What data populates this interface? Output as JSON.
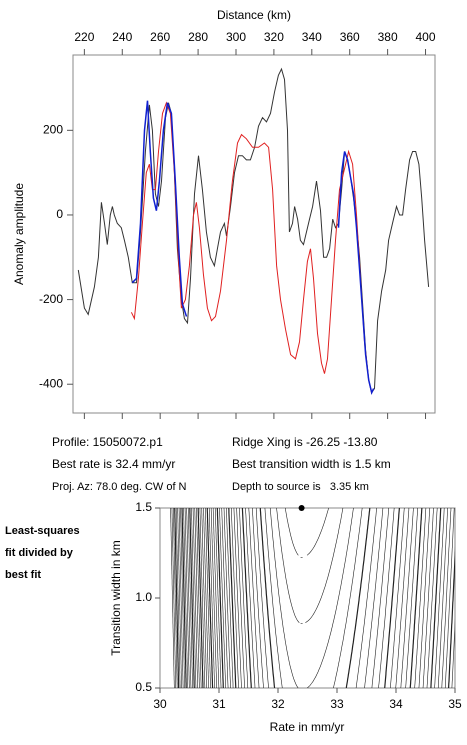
{
  "chart_data": [
    {
      "type": "line",
      "xlabel": "Distance (km)",
      "ylabel": "Anomaly amplitude",
      "xlim": [
        214,
        405
      ],
      "ylim": [
        -468,
        378
      ],
      "xticks": [
        220,
        240,
        260,
        280,
        300,
        320,
        340,
        360,
        380,
        400
      ],
      "yticks": [
        -400,
        -200,
        0,
        200
      ],
      "series": [
        {
          "color": "#333333",
          "x": [
            216.8,
            220,
            222,
            225.3,
            227.4,
            229,
            230.6,
            232.1,
            233.7,
            234.8,
            235.8,
            237.4,
            239.5,
            241.1,
            243.2,
            245.3,
            247.5,
            249.6,
            252.2,
            254.3,
            255.9,
            257.5,
            259.1,
            260.7,
            262.8,
            264.4,
            265.9,
            267.5,
            269.1,
            271.2,
            272.8,
            274.4,
            276,
            278.1,
            280.2,
            282.3,
            284.4,
            286.5,
            288.6,
            290.2,
            291.8,
            293.9,
            295,
            297.1,
            299.2,
            301.3,
            303.4,
            305.5,
            307.6,
            309.8,
            311.9,
            314,
            316.1,
            318.2,
            320.3,
            322.4,
            324,
            325.6,
            327.2,
            328.2,
            329.8,
            330.9,
            332.5,
            334,
            335.6,
            337.2,
            338.8,
            340.4,
            342.5,
            344.6,
            346.2,
            347.8,
            349.4,
            351,
            352.5,
            354.1,
            355.7,
            357.3,
            358.9,
            360.4,
            362,
            363.6,
            365.2,
            366.8,
            368.4,
            370,
            371.6,
            373.1,
            374.7,
            376.8,
            379,
            380.5,
            382.6,
            384.7,
            386.3,
            387.9,
            389.5,
            391.6,
            393.2,
            394.8,
            396.5,
            398,
            399.5,
            401.6
          ],
          "values": [
            -130,
            -220,
            -235,
            -170,
            -100,
            30,
            -20,
            -70,
            0,
            20,
            0,
            -20,
            -30,
            -60,
            -100,
            -160,
            -160,
            -40,
            150,
            260,
            200,
            50,
            20,
            80,
            230,
            265,
            240,
            100,
            -80,
            -200,
            -245,
            -255,
            -150,
            50,
            140,
            60,
            -40,
            -100,
            -120,
            -80,
            -40,
            -20,
            -50,
            20,
            100,
            140,
            140,
            130,
            130,
            160,
            210,
            230,
            220,
            240,
            290,
            330,
            345,
            320,
            200,
            -40,
            -20,
            20,
            -10,
            -60,
            -70,
            -40,
            -10,
            20,
            80,
            10,
            -100,
            -100,
            -80,
            -10,
            -30,
            -20,
            60,
            150,
            130,
            90,
            40,
            -20,
            -100,
            -210,
            -320,
            -390,
            -420,
            -410,
            -250,
            -180,
            -130,
            -60,
            -20,
            20,
            0,
            0,
            60,
            130,
            150,
            150,
            120,
            40,
            -60,
            -170
          ]
        },
        {
          "color": "#e02020",
          "x": [
            244.8,
            246.4,
            248.5,
            250.6,
            252.7,
            254.3,
            255.9,
            257.5,
            259.1,
            261.2,
            263.3,
            265.4,
            267.5,
            269.6,
            271.2,
            273.3,
            275.4,
            277.6,
            279.1,
            280.7,
            282.8,
            284.9,
            287.1,
            289.2,
            291.8,
            295,
            298.1,
            300.8,
            302.9,
            305.5,
            308.7,
            311.9,
            315,
            317.2,
            319.3,
            321.4,
            323.5,
            326.1,
            328.8,
            331.4,
            333.5,
            335.6,
            337.7,
            339.3,
            340.9,
            343,
            345.1,
            346.7,
            348.3,
            350.4,
            352.5,
            354.6,
            356.8,
            359.4,
            361.5,
            363.6,
            365.7,
            367.8,
            370,
            371.5,
            372.6
          ],
          "values": [
            -230,
            -245,
            -150,
            -20,
            100,
            120,
            60,
            60,
            150,
            240,
            265,
            240,
            100,
            -100,
            -220,
            -200,
            -120,
            0,
            30,
            -30,
            -140,
            -220,
            -250,
            -240,
            -180,
            -60,
            80,
            170,
            190,
            180,
            160,
            160,
            170,
            160,
            60,
            -120,
            -200,
            -270,
            -330,
            -340,
            -300,
            -200,
            -110,
            -80,
            -150,
            -280,
            -350,
            -375,
            -340,
            -200,
            -60,
            60,
            100,
            150,
            120,
            0,
            -150,
            -300,
            -390,
            -420,
            -410
          ]
        },
        {
          "color": "#1020d0",
          "x": [
            245.3,
            247.5,
            249.6,
            251.7,
            253.3,
            254.8,
            256.4,
            258,
            259.6,
            261.7,
            263.8,
            265.9,
            268,
            270.1,
            271.7,
            273.9,
            null,
            354.1,
            355.7,
            357.3,
            358.9,
            360.4,
            362,
            363.6,
            365.2,
            366.8,
            368.4,
            370,
            371.6,
            372.6
          ],
          "values": [
            -160,
            -150,
            -20,
            200,
            270,
            150,
            40,
            10,
            80,
            200,
            265,
            240,
            80,
            -100,
            -210,
            -240,
            null,
            -30,
            100,
            150,
            130,
            90,
            50,
            -30,
            -130,
            -230,
            -330,
            -390,
            -420,
            -410
          ]
        }
      ],
      "annotations": [
        "Profile: 15050072.p1",
        "Best rate is 32.4 mm/yr",
        "Proj. Az: 78.0 deg. CW of N",
        "Ridge Xing is -26.25 -13.80",
        "Best transition width is 1.5 km",
        "Depth to source is   3.35 km"
      ]
    },
    {
      "type": "contour",
      "xlabel": "Rate in mm/yr",
      "ylabel": "Transition width in km",
      "xlim": [
        30,
        35
      ],
      "ylim": [
        0.5,
        1.5
      ],
      "xticks": [
        30,
        31,
        32,
        33,
        34,
        35
      ],
      "yticks": [
        0.5,
        {
          "value": 1,
          "label": "1.0"
        },
        1.5
      ],
      "series": [
        {
          "color": "#000000",
          "x": [
            32.4
          ],
          "values": [
            1.5
          ]
        }
      ],
      "annotations": [
        "Least-squares",
        "fit divided by",
        "best fit"
      ]
    }
  ]
}
